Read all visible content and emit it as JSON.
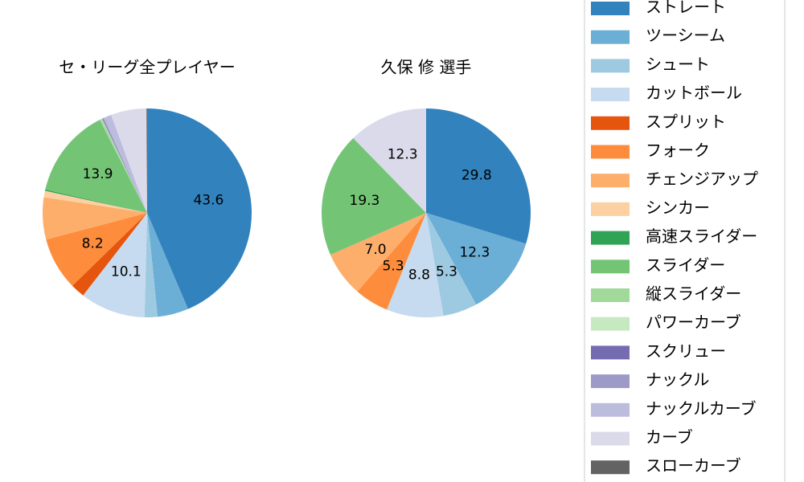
{
  "chart_data": [
    {
      "type": "pie",
      "title": "セ・リーグ全プレイヤー",
      "categories": [
        "ストレート",
        "ツーシーム",
        "シュート",
        "カットボール",
        "スプリット",
        "フォーク",
        "チェンジアップ",
        "シンカー",
        "高速スライダー",
        "スライダー",
        "縦スライダー",
        "パワーカーブ",
        "スクリュー",
        "ナックル",
        "ナックルカーブ",
        "カーブ",
        "スローカーブ"
      ],
      "values": [
        43.6,
        4.8,
        2.0,
        10.1,
        2.2,
        8.2,
        6.5,
        1.0,
        0.2,
        13.9,
        0.3,
        0.1,
        0.1,
        0.2,
        1.2,
        5.5,
        0.1
      ],
      "value_labels": [
        "43.6",
        null,
        null,
        "10.1",
        null,
        "8.2",
        null,
        null,
        null,
        "13.9",
        null,
        null,
        null,
        null,
        null,
        null,
        null
      ]
    },
    {
      "type": "pie",
      "title": "久保 修  選手",
      "categories": [
        "ストレート",
        "ツーシーム",
        "シュート",
        "カットボール",
        "フォーク",
        "チェンジアップ",
        "スライダー",
        "カーブ"
      ],
      "values": [
        29.8,
        12.3,
        5.3,
        8.8,
        5.3,
        7.0,
        19.3,
        12.3
      ],
      "value_labels": [
        "29.8",
        "12.3",
        "5.3",
        "8.8",
        "5.3",
        "7.0",
        "19.3",
        "12.3"
      ]
    }
  ],
  "legend": {
    "items": [
      {
        "name": "ストレート",
        "color": "#3182bd"
      },
      {
        "name": "ツーシーム",
        "color": "#6baed6"
      },
      {
        "name": "シュート",
        "color": "#9ecae1"
      },
      {
        "name": "カットボール",
        "color": "#c6dbef"
      },
      {
        "name": "スプリット",
        "color": "#e6550d"
      },
      {
        "name": "フォーク",
        "color": "#fd8d3c"
      },
      {
        "name": "チェンジアップ",
        "color": "#fdae6b"
      },
      {
        "name": "シンカー",
        "color": "#fdd0a2"
      },
      {
        "name": "高速スライダー",
        "color": "#31a354"
      },
      {
        "name": "スライダー",
        "color": "#74c476"
      },
      {
        "name": "縦スライダー",
        "color": "#a1d99b"
      },
      {
        "name": "パワーカーブ",
        "color": "#c7e9c0"
      },
      {
        "name": "スクリュー",
        "color": "#756bb1"
      },
      {
        "name": "ナックル",
        "color": "#9e9ac8"
      },
      {
        "name": "ナックルカーブ",
        "color": "#bcbddc"
      },
      {
        "name": "カーブ",
        "color": "#dadaeb"
      },
      {
        "name": "スローカーブ",
        "color": "#636363"
      }
    ]
  }
}
